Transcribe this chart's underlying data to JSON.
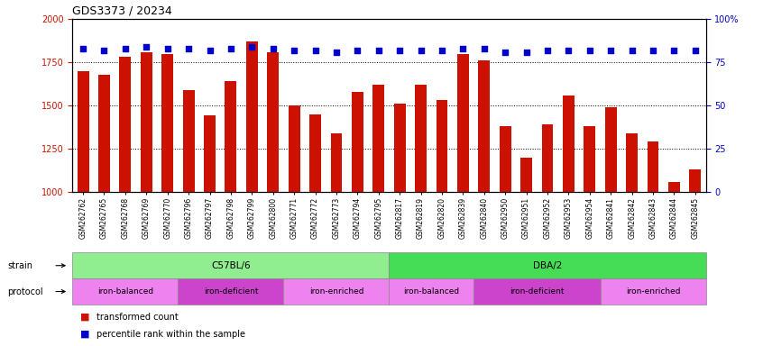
{
  "title": "GDS3373 / 20234",
  "samples": [
    "GSM262762",
    "GSM262765",
    "GSM262768",
    "GSM262769",
    "GSM262770",
    "GSM262796",
    "GSM262797",
    "GSM262798",
    "GSM262799",
    "GSM262800",
    "GSM262771",
    "GSM262772",
    "GSM262773",
    "GSM262794",
    "GSM262795",
    "GSM262817",
    "GSM262819",
    "GSM262820",
    "GSM262839",
    "GSM262840",
    "GSM262950",
    "GSM262951",
    "GSM262952",
    "GSM262953",
    "GSM262954",
    "GSM262841",
    "GSM262842",
    "GSM262843",
    "GSM262844",
    "GSM262845"
  ],
  "bar_values": [
    1700,
    1680,
    1780,
    1810,
    1800,
    1590,
    1445,
    1640,
    1870,
    1810,
    1500,
    1450,
    1340,
    1580,
    1620,
    1510,
    1620,
    1530,
    1800,
    1760,
    1380,
    1200,
    1390,
    1560,
    1380,
    1490,
    1340,
    1290,
    1060,
    1130
  ],
  "percentile_values": [
    83,
    82,
    83,
    84,
    83,
    83,
    82,
    83,
    84,
    83,
    82,
    82,
    81,
    82,
    82,
    82,
    82,
    82,
    83,
    83,
    81,
    81,
    82,
    82,
    82,
    82,
    82,
    82,
    82,
    82
  ],
  "bar_color": "#cc1100",
  "dot_color": "#0000cc",
  "ylim_left": [
    1000,
    2000
  ],
  "ylim_right": [
    0,
    100
  ],
  "yticks_left": [
    1000,
    1250,
    1500,
    1750,
    2000
  ],
  "yticks_right": [
    0,
    25,
    50,
    75,
    100
  ],
  "strain_groups": [
    {
      "label": "C57BL/6",
      "start": 0,
      "end": 15,
      "color": "#90ee90"
    },
    {
      "label": "DBA/2",
      "start": 15,
      "end": 30,
      "color": "#44dd55"
    }
  ],
  "protocol_groups": [
    {
      "label": "iron-balanced",
      "start": 0,
      "end": 5,
      "color": "#ee82ee"
    },
    {
      "label": "iron-deficient",
      "start": 5,
      "end": 10,
      "color": "#cc44cc"
    },
    {
      "label": "iron-enriched",
      "start": 10,
      "end": 15,
      "color": "#ee82ee"
    },
    {
      "label": "iron-balanced",
      "start": 15,
      "end": 19,
      "color": "#ee82ee"
    },
    {
      "label": "iron-deficient",
      "start": 19,
      "end": 25,
      "color": "#cc44cc"
    },
    {
      "label": "iron-enriched",
      "start": 25,
      "end": 30,
      "color": "#ee82ee"
    }
  ],
  "legend_items": [
    {
      "label": "transformed count",
      "color": "#cc1100"
    },
    {
      "label": "percentile rank within the sample",
      "color": "#0000cc"
    }
  ],
  "background_color": "#ffffff",
  "ylabel_left_color": "#cc1100",
  "ylabel_right_color": "#0000cc"
}
